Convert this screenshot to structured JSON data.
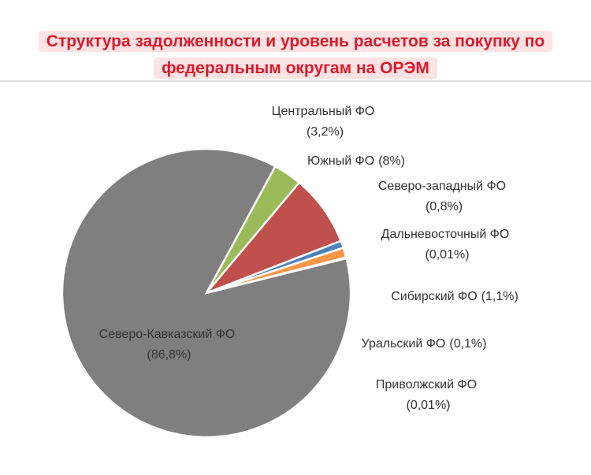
{
  "chart_data": {
    "type": "pie",
    "title": "Структура задолженности и уровень расчетов за покупку по федеральным округам на ОРЭМ",
    "categories": [
      "Центральный ФО",
      "Южный ФО",
      "Северо-западный ФО",
      "Дальневосточный ФО",
      "Сибирский ФО",
      "Уральский ФО",
      "Приволжский ФО",
      "Северо-Кавказский ФО"
    ],
    "values": [
      3.2,
      8,
      0.8,
      0.01,
      1.1,
      0.1,
      0.01,
      86.8
    ],
    "value_labels": [
      "(3,2%)",
      "(8%)",
      "(0,8%)",
      "(0,01%)",
      "(1,1%)",
      "(0,1%)",
      "(0,01%)",
      "(86,8%)"
    ],
    "colors": [
      "#9bbb59",
      "#c0504d",
      "#4f81bd",
      "#8064a2",
      "#f79646",
      "#4bacc6",
      "#2c4d75",
      "#7f7f7f"
    ]
  }
}
